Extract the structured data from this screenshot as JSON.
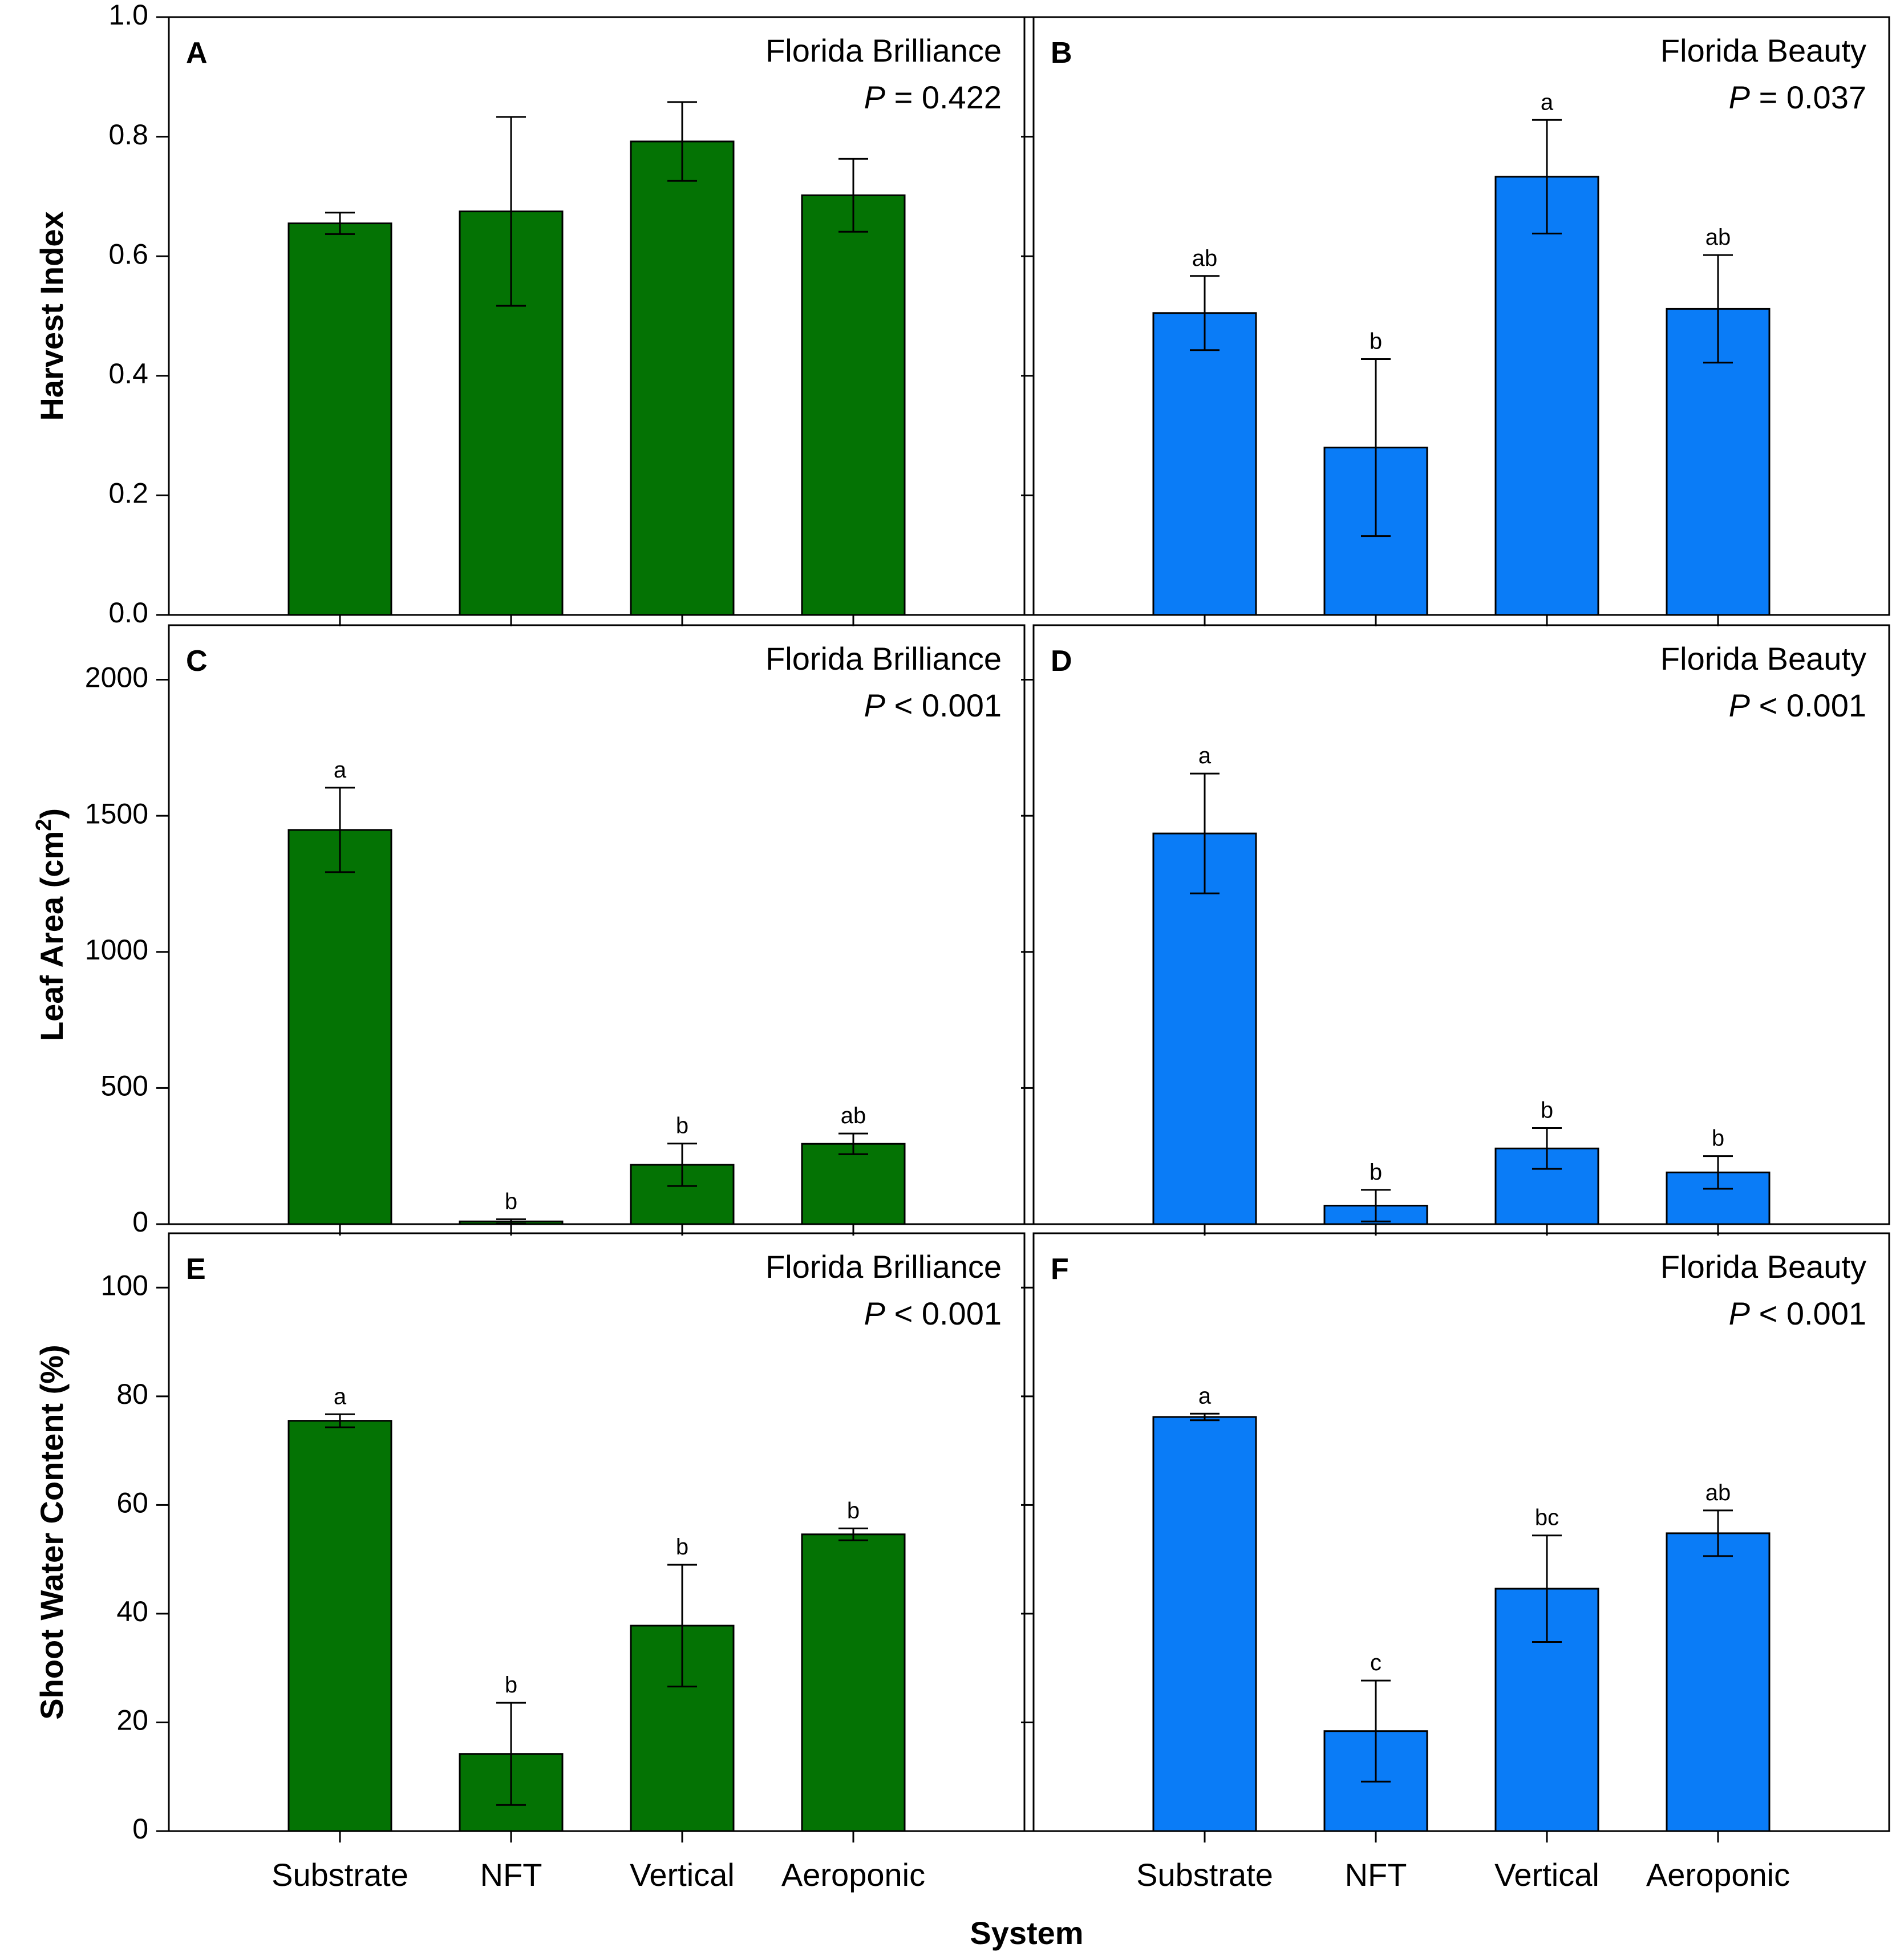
{
  "figure": {
    "x_axis_title": "System",
    "categories": [
      "Substrate",
      "NFT",
      "Vertical",
      "Aeroponic"
    ],
    "colors": {
      "brilliance": "#047304",
      "beauty": "#0a7cf7"
    }
  },
  "chart_data": [
    {
      "panel": "A",
      "type": "bar",
      "cultivar": "Florida Brilliance",
      "p_label": "P",
      "p_rest": " = 0.422",
      "ylabel": "Harvest Index",
      "ylim": [
        0,
        1.0
      ],
      "yticks": [
        0,
        0.2,
        0.4,
        0.6,
        0.8,
        1.0
      ],
      "ytick_labels": [
        "0.0",
        "0.2",
        "0.4",
        "0.6",
        "0.8",
        "1.0"
      ],
      "categories": [
        "Substrate",
        "NFT",
        "Vertical",
        "Aeroponic"
      ],
      "values": [
        0.655,
        0.675,
        0.792,
        0.702
      ],
      "errors": [
        0.018,
        0.158,
        0.066,
        0.061
      ],
      "letters": [
        "",
        "",
        "",
        ""
      ]
    },
    {
      "panel": "B",
      "type": "bar",
      "cultivar": "Florida Beauty",
      "p_label": "P",
      "p_rest": " = 0.037",
      "ylabel": "",
      "ylim": [
        0,
        1.0
      ],
      "yticks": [
        0,
        0.2,
        0.4,
        0.6,
        0.8,
        1.0
      ],
      "ytick_labels": [],
      "categories": [
        "Substrate",
        "NFT",
        "Vertical",
        "Aeroponic"
      ],
      "values": [
        0.505,
        0.28,
        0.733,
        0.512
      ],
      "errors": [
        0.062,
        0.148,
        0.095,
        0.09
      ],
      "letters": [
        "ab",
        "b",
        "a",
        "ab"
      ]
    },
    {
      "panel": "C",
      "type": "bar",
      "cultivar": "Florida Brilliance",
      "p_label": "P",
      "p_rest": " < 0.001",
      "ylabel": "Leaf Area (cm",
      "ylabel_sup": "2",
      "ylabel_end": ")",
      "ylim": [
        0,
        2200
      ],
      "yticks": [
        0,
        500,
        1000,
        1500,
        2000
      ],
      "ytick_labels": [
        "0",
        "500",
        "1000",
        "1500",
        "2000"
      ],
      "categories": [
        "Substrate",
        "NFT",
        "Vertical",
        "Aeroponic"
      ],
      "values": [
        1448,
        10,
        218,
        295
      ],
      "errors": [
        155,
        8,
        78,
        38
      ],
      "letters": [
        "a",
        "b",
        "b",
        "ab"
      ]
    },
    {
      "panel": "D",
      "type": "bar",
      "cultivar": "Florida Beauty",
      "p_label": "P",
      "p_rest": " < 0.001",
      "ylabel": "",
      "ylim": [
        0,
        2200
      ],
      "yticks": [
        0,
        500,
        1000,
        1500,
        2000
      ],
      "ytick_labels": [],
      "categories": [
        "Substrate",
        "NFT",
        "Vertical",
        "Aeroponic"
      ],
      "values": [
        1435,
        68,
        278,
        190
      ],
      "errors": [
        220,
        58,
        75,
        60
      ],
      "letters": [
        "a",
        "b",
        "b",
        "b"
      ]
    },
    {
      "panel": "E",
      "type": "bar",
      "cultivar": "Florida Brilliance",
      "p_label": "P",
      "p_rest": " < 0.001",
      "ylabel": "Shoot Water Content (%)",
      "ylim": [
        0,
        110
      ],
      "yticks": [
        0,
        20,
        40,
        60,
        80,
        100
      ],
      "ytick_labels": [
        "0",
        "20",
        "40",
        "60",
        "80",
        "100"
      ],
      "categories": [
        "Substrate",
        "NFT",
        "Vertical",
        "Aeroponic"
      ],
      "values": [
        75.5,
        14.2,
        37.8,
        54.6
      ],
      "errors": [
        1.2,
        9.4,
        11.2,
        1.1
      ],
      "letters": [
        "a",
        "b",
        "b",
        "b"
      ]
    },
    {
      "panel": "F",
      "type": "bar",
      "cultivar": "Florida Beauty",
      "p_label": "P",
      "p_rest": " < 0.001",
      "ylabel": "",
      "ylim": [
        0,
        110
      ],
      "yticks": [
        0,
        20,
        40,
        60,
        80,
        100
      ],
      "ytick_labels": [],
      "categories": [
        "Substrate",
        "NFT",
        "Vertical",
        "Aeroponic"
      ],
      "values": [
        76.2,
        18.4,
        44.6,
        54.8
      ],
      "errors": [
        0.6,
        9.3,
        9.8,
        4.2
      ],
      "letters": [
        "a",
        "c",
        "bc",
        "ab"
      ]
    }
  ]
}
